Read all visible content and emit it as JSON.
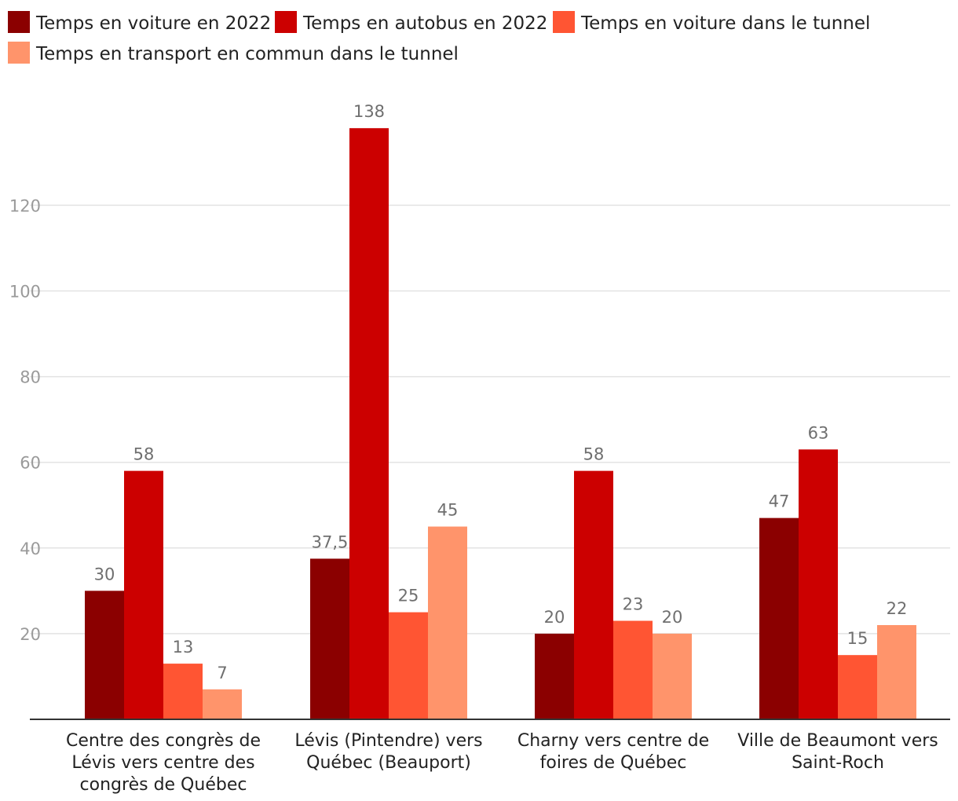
{
  "chart_data": {
    "type": "bar",
    "title": "",
    "xlabel": "",
    "ylabel": "",
    "ylim": [
      0,
      145
    ],
    "yticks": [
      20,
      40,
      60,
      80,
      100,
      120
    ],
    "grid": true,
    "legend_position": "top-left",
    "categories": [
      [
        "Centre des congrès de",
        "Lévis vers centre des",
        "congrès de Québec"
      ],
      [
        "Lévis (Pintendre) vers",
        "Québec (Beauport)"
      ],
      [
        "Charny vers centre de",
        "foires de Québec"
      ],
      [
        "Ville de Beaumont vers",
        "Saint-Roch"
      ]
    ],
    "series": [
      {
        "name": "Temps en voiture en 2022",
        "color": "#8b0000",
        "values": [
          30,
          37.5,
          20,
          47
        ],
        "labels": [
          "30",
          "37,5",
          "20",
          "47"
        ]
      },
      {
        "name": "Temps en autobus en 2022",
        "color": "#cc0000",
        "values": [
          58,
          138,
          58,
          63
        ],
        "labels": [
          "58",
          "138",
          "58",
          "63"
        ]
      },
      {
        "name": "Temps en voiture dans le tunnel",
        "color": "#ff5533",
        "values": [
          13,
          25,
          23,
          15
        ],
        "labels": [
          "13",
          "25",
          "23",
          "15"
        ]
      },
      {
        "name": "Temps en transport en commun dans le tunnel",
        "color": "#ff946b",
        "values": [
          7,
          45,
          20,
          22
        ],
        "labels": [
          "7",
          "45",
          "20",
          "22"
        ]
      }
    ]
  }
}
